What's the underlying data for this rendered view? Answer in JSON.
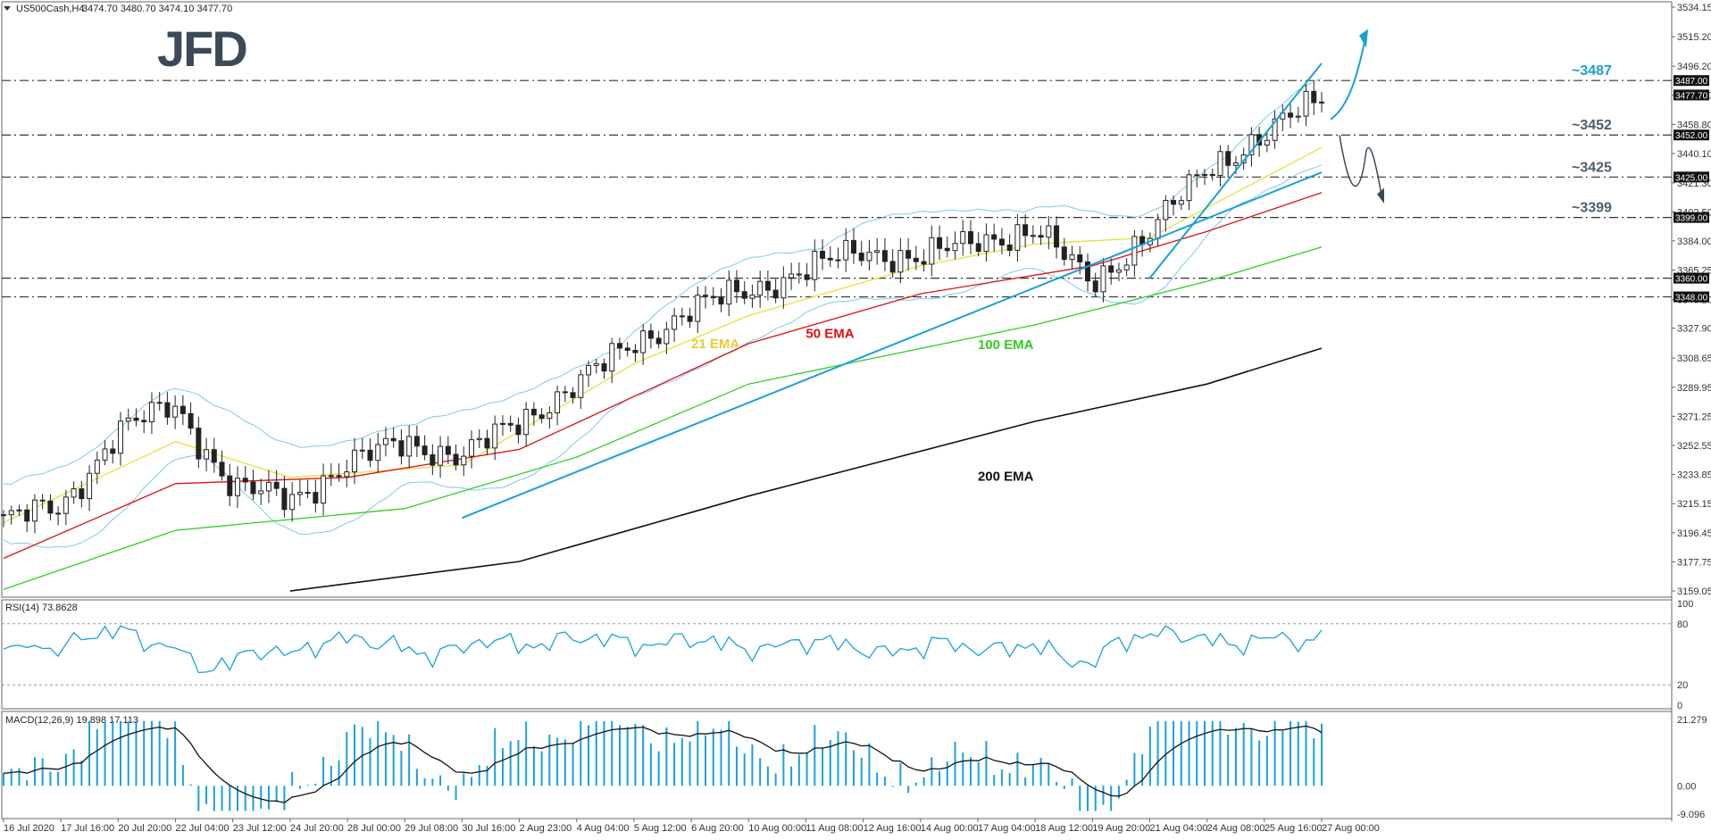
{
  "header": {
    "symbol": "US500Cash,H4",
    "ohlc": "3474.70 3480.70 3474.10 3477.70"
  },
  "logo": {
    "text": "JFD"
  },
  "price_axis": [
    "3534.15",
    "3515.20",
    "3496.20",
    "3477.70",
    "3458.80",
    "3440.10",
    "3421.30",
    "3402.50",
    "3384.00",
    "3365.25",
    "3346.20",
    "3327.90",
    "3308.65",
    "3289.95",
    "3271.25",
    "3252.55",
    "3233.85",
    "3215.15",
    "3196.45",
    "3177.75",
    "3159.05"
  ],
  "price_boxes": [
    {
      "label": "3487.00",
      "value": 3487
    },
    {
      "label": "3477.70",
      "value": 3477.7
    },
    {
      "label": "3452.00",
      "value": 3452
    },
    {
      "label": "3425.00",
      "value": 3425
    },
    {
      "label": "3399.00",
      "value": 3399
    },
    {
      "label": "3360.00",
      "value": 3360
    },
    {
      "label": "3348.00",
      "value": 3348
    }
  ],
  "levels": [
    {
      "label": "~3487",
      "value": 3487,
      "color": "#1aa0d8"
    },
    {
      "label": "~3452",
      "value": 3452,
      "color": "#4a5f6f"
    },
    {
      "label": "~3425",
      "value": 3425,
      "color": "#4a5f6f"
    },
    {
      "label": "~3399",
      "value": 3399,
      "color": "#4a5f6f"
    }
  ],
  "support_levels": [
    3360,
    3348
  ],
  "ema_labels": [
    {
      "label": "21 EMA",
      "color": "#e8e040"
    },
    {
      "label": "50 EMA",
      "color": "#dd1111"
    },
    {
      "label": "100 EMA",
      "color": "#33cc22"
    },
    {
      "label": "200 EMA",
      "color": "#111111"
    }
  ],
  "time_axis": [
    "16 Jul 2020",
    "17 Jul 16:00",
    "20 Jul 20:00",
    "22 Jul 04:00",
    "23 Jul 12:00",
    "24 Jul 20:00",
    "28 Jul 00:00",
    "29 Jul 08:00",
    "30 Jul 16:00",
    "2 Aug 23:00",
    "4 Aug 04:00",
    "5 Aug 12:00",
    "6 Aug 20:00",
    "10 Aug 00:00",
    "11 Aug 08:00",
    "12 Aug 16:00",
    "14 Aug 00:00",
    "17 Aug 04:00",
    "18 Aug 12:00",
    "19 Aug 20:00",
    "21 Aug 04:00",
    "24 Aug 08:00",
    "25 Aug 16:00",
    "27 Aug 00:00"
  ],
  "rsi": {
    "title": "RSI(14) 73.8628",
    "ticks": [
      "100",
      "80",
      "20",
      "0"
    ]
  },
  "macd": {
    "title": "MACD(12,26,9) 19.898 17.113",
    "ticks": [
      "21.279",
      "0.00",
      "-9.096"
    ]
  },
  "colors": {
    "bollinger": "#7fc8ea",
    "trendline": "#1aa0d8",
    "indicator": "#1aa0d8",
    "candle_dark": "#222222"
  },
  "chart_data": {
    "type": "candlestick",
    "instrument": "US500Cash",
    "timeframe": "H4",
    "ylim": [
      3159.05,
      3534.15
    ],
    "key_levels": [
      3487,
      3452,
      3425,
      3399
    ],
    "marked_levels": [
      3487,
      3477.7,
      3452,
      3425,
      3399,
      3360,
      3348
    ],
    "close_path": [
      {
        "x": "16 Jul 2020",
        "y": 3205
      },
      {
        "x": "17 Jul 16:00",
        "y": 3212
      },
      {
        "x": "20 Jul 20:00",
        "y": 3262
      },
      {
        "x": "22 Jul 04:00",
        "y": 3278
      },
      {
        "x": "23 Jul 12:00",
        "y": 3225
      },
      {
        "x": "24 Jul 20:00",
        "y": 3218
      },
      {
        "x": "28 Jul 00:00",
        "y": 3240
      },
      {
        "x": "29 Jul 08:00",
        "y": 3255
      },
      {
        "x": "30 Jul 16:00",
        "y": 3245
      },
      {
        "x": "2 Aug 23:00",
        "y": 3268
      },
      {
        "x": "4 Aug 04:00",
        "y": 3292
      },
      {
        "x": "5 Aug 12:00",
        "y": 3318
      },
      {
        "x": "6 Aug 20:00",
        "y": 3340
      },
      {
        "x": "10 Aug 00:00",
        "y": 3352
      },
      {
        "x": "11 Aug 08:00",
        "y": 3365
      },
      {
        "x": "12 Aug 16:00",
        "y": 3378
      },
      {
        "x": "14 Aug 00:00",
        "y": 3372
      },
      {
        "x": "17 Aug 04:00",
        "y": 3385
      },
      {
        "x": "18 Aug 12:00",
        "y": 3390
      },
      {
        "x": "19 Aug 20:00",
        "y": 3358
      },
      {
        "x": "21 Aug 04:00",
        "y": 3388
      },
      {
        "x": "24 Aug 08:00",
        "y": 3432
      },
      {
        "x": "25 Aug 16:00",
        "y": 3450
      },
      {
        "x": "27 Aug 00:00",
        "y": 3477.7
      }
    ],
    "ema": {
      "21": [
        {
          "x": "16 Jul 2020",
          "y": 3203
        },
        {
          "x": "22 Jul 04:00",
          "y": 3255
        },
        {
          "x": "24 Jul 20:00",
          "y": 3232
        },
        {
          "x": "30 Jul 16:00",
          "y": 3240
        },
        {
          "x": "5 Aug 12:00",
          "y": 3305
        },
        {
          "x": "10 Aug 00:00",
          "y": 3336
        },
        {
          "x": "14 Aug 00:00",
          "y": 3368
        },
        {
          "x": "18 Aug 12:00",
          "y": 3382
        },
        {
          "x": "21 Aug 04:00",
          "y": 3386
        },
        {
          "x": "27 Aug 00:00",
          "y": 3444
        }
      ],
      "50": [
        {
          "x": "16 Jul 2020",
          "y": 3180
        },
        {
          "x": "22 Jul 04:00",
          "y": 3228
        },
        {
          "x": "28 Jul 00:00",
          "y": 3232
        },
        {
          "x": "2 Aug 23:00",
          "y": 3250
        },
        {
          "x": "10 Aug 00:00",
          "y": 3318
        },
        {
          "x": "14 Aug 00:00",
          "y": 3350
        },
        {
          "x": "19 Aug 20:00",
          "y": 3368
        },
        {
          "x": "24 Aug 08:00",
          "y": 3390
        },
        {
          "x": "27 Aug 00:00",
          "y": 3415
        }
      ],
      "100": [
        {
          "x": "16 Jul 2020",
          "y": 3160
        },
        {
          "x": "22 Jul 04:00",
          "y": 3198
        },
        {
          "x": "29 Jul 08:00",
          "y": 3212
        },
        {
          "x": "4 Aug 04:00",
          "y": 3245
        },
        {
          "x": "10 Aug 00:00",
          "y": 3292
        },
        {
          "x": "18 Aug 12:00",
          "y": 3330
        },
        {
          "x": "24 Aug 08:00",
          "y": 3358
        },
        {
          "x": "27 Aug 00:00",
          "y": 3380
        }
      ],
      "200": [
        {
          "x": "24 Jul 20:00",
          "y": 3159
        },
        {
          "x": "2 Aug 23:00",
          "y": 3178
        },
        {
          "x": "10 Aug 00:00",
          "y": 3220
        },
        {
          "x": "18 Aug 12:00",
          "y": 3268
        },
        {
          "x": "24 Aug 08:00",
          "y": 3292
        },
        {
          "x": "27 Aug 00:00",
          "y": 3315
        }
      ]
    },
    "rsi_value": 73.8628,
    "rsi_levels": [
      80,
      20
    ],
    "macd_values": {
      "main": 19.898,
      "signal": 17.113
    }
  }
}
